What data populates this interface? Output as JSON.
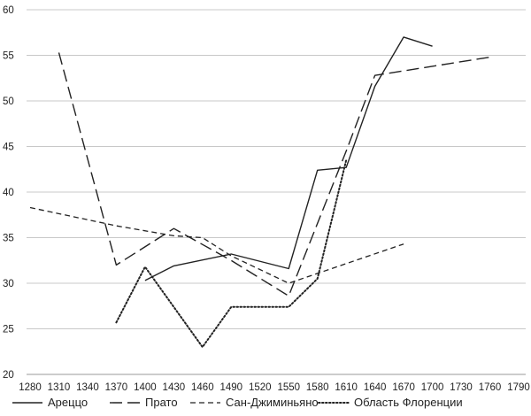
{
  "chart_data": {
    "type": "line",
    "title": "",
    "xlabel": "",
    "ylabel": "",
    "x_ticks": [
      1280,
      1310,
      1340,
      1370,
      1400,
      1430,
      1460,
      1490,
      1520,
      1550,
      1580,
      1610,
      1640,
      1670,
      1700,
      1730,
      1760,
      1790
    ],
    "y_ticks": [
      20,
      25,
      30,
      35,
      40,
      45,
      50,
      55,
      60
    ],
    "xlim": [
      1280,
      1790
    ],
    "ylim": [
      20,
      60
    ],
    "grid": "horizontal",
    "legend_position": "bottom",
    "series": [
      {
        "name": "Ареццо",
        "dash": "solid",
        "color": "#222222",
        "points": [
          [
            1400,
            30.3
          ],
          [
            1430,
            31.9
          ],
          [
            1490,
            33.2
          ],
          [
            1550,
            31.6
          ],
          [
            1580,
            42.4
          ],
          [
            1610,
            42.7
          ],
          [
            1640,
            51.6
          ],
          [
            1670,
            57.0
          ],
          [
            1700,
            56.0
          ]
        ]
      },
      {
        "name": "Прато",
        "dash": "long-dash",
        "color": "#222222",
        "points": [
          [
            1310,
            55.3
          ],
          [
            1370,
            32.0
          ],
          [
            1430,
            36.0
          ],
          [
            1490,
            32.5
          ],
          [
            1550,
            28.6
          ],
          [
            1610,
            44.5
          ],
          [
            1640,
            52.8
          ],
          [
            1760,
            54.8
          ]
        ]
      },
      {
        "name": "Сан-Джиминьяно",
        "dash": "short-dash",
        "color": "#222222",
        "points": [
          [
            1280,
            38.3
          ],
          [
            1370,
            36.3
          ],
          [
            1430,
            35.2
          ],
          [
            1460,
            35.0
          ],
          [
            1490,
            33.0
          ],
          [
            1550,
            30.0
          ],
          [
            1670,
            34.3
          ]
        ]
      },
      {
        "name": "Область Флоренции",
        "dash": "dotted",
        "color": "#222222",
        "points": [
          [
            1370,
            25.7
          ],
          [
            1400,
            31.8
          ],
          [
            1460,
            23.0
          ],
          [
            1490,
            27.4
          ],
          [
            1550,
            27.4
          ],
          [
            1580,
            30.5
          ],
          [
            1610,
            43.5
          ]
        ]
      }
    ]
  }
}
